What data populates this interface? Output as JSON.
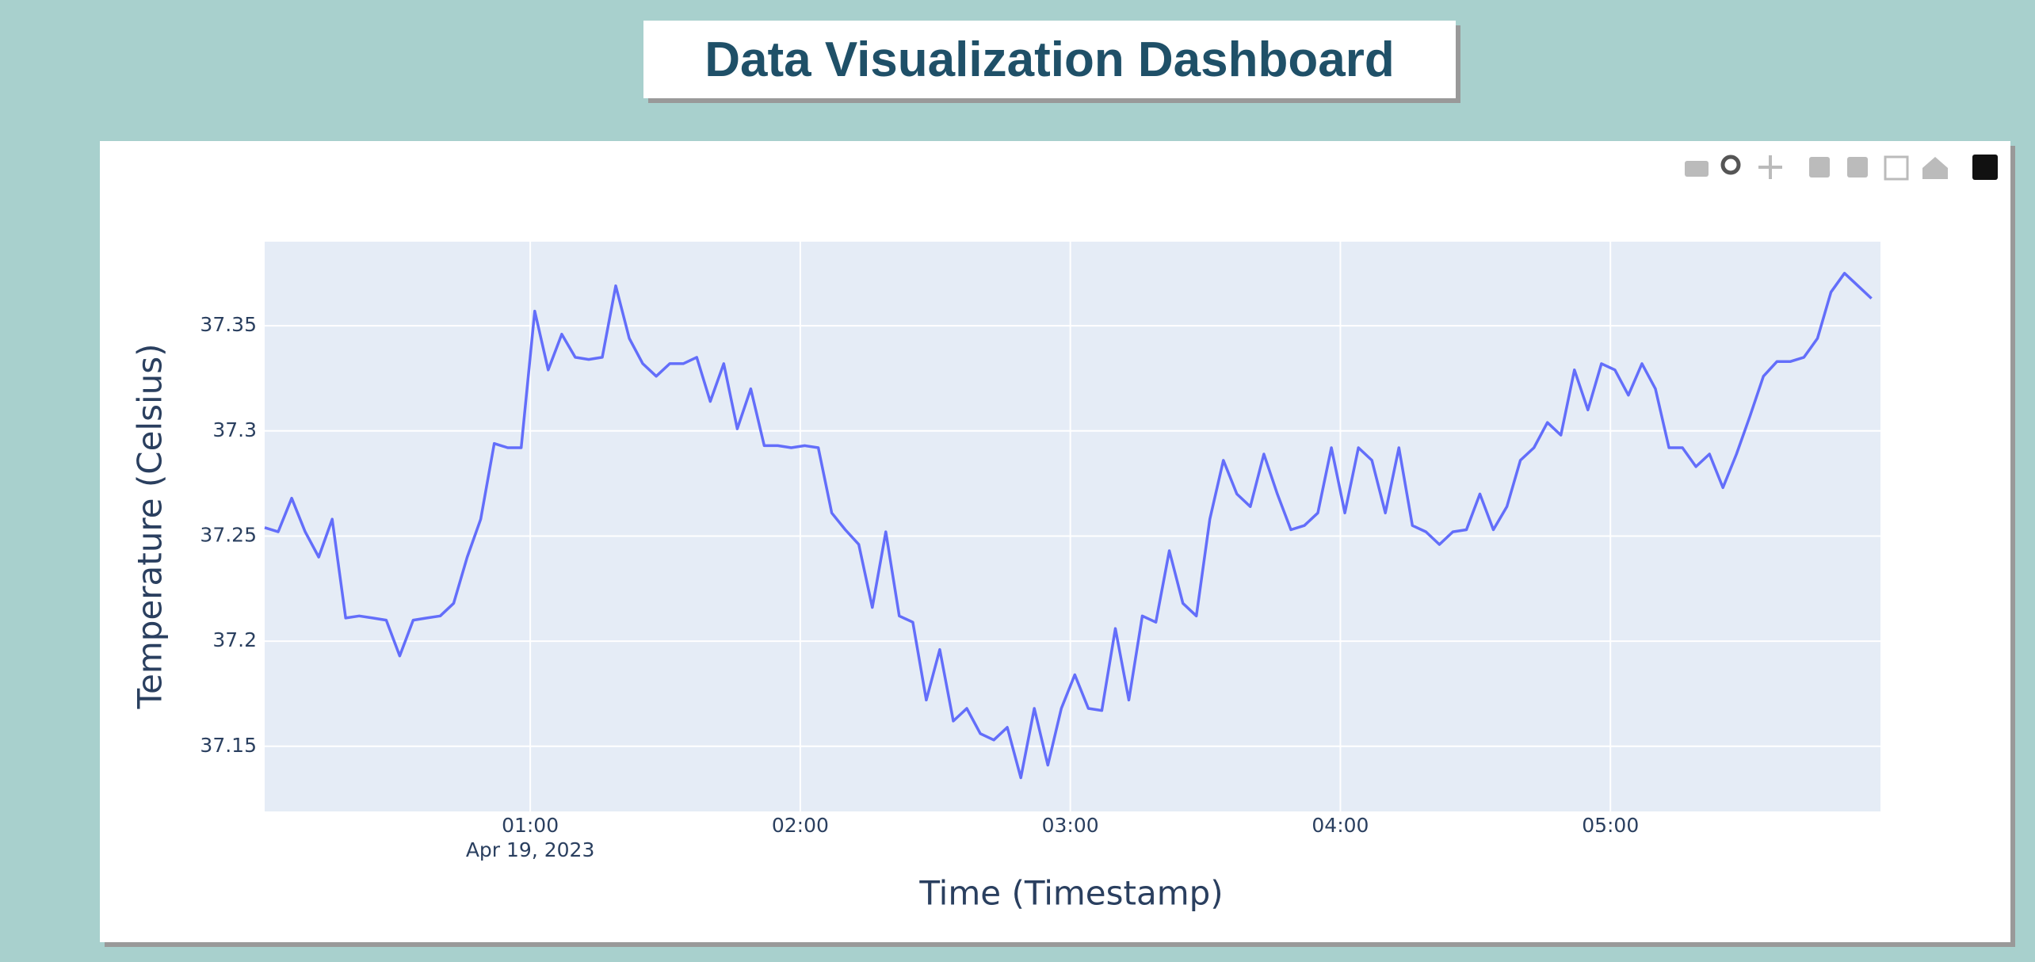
{
  "header": {
    "title": "Data Visualization Dashboard"
  },
  "chart_data": {
    "type": "line",
    "x_title": "Time (Timestamp)",
    "y_title": "Temperature (Celsius)",
    "x_date_label": "Apr 19, 2023",
    "color": "#636efa",
    "grid": true,
    "x": [
      "2023-04-19 00:01",
      "2023-04-19 00:04",
      "2023-04-19 00:07",
      "2023-04-19 00:10",
      "2023-04-19 00:13",
      "2023-04-19 00:16",
      "2023-04-19 00:19",
      "2023-04-19 00:22",
      "2023-04-19 00:25",
      "2023-04-19 00:28",
      "2023-04-19 00:31",
      "2023-04-19 00:34",
      "2023-04-19 00:37",
      "2023-04-19 00:40",
      "2023-04-19 00:43",
      "2023-04-19 00:46",
      "2023-04-19 00:49",
      "2023-04-19 00:52",
      "2023-04-19 00:55",
      "2023-04-19 00:58",
      "2023-04-19 01:01",
      "2023-04-19 01:04",
      "2023-04-19 01:07",
      "2023-04-19 01:10",
      "2023-04-19 01:13",
      "2023-04-19 01:16",
      "2023-04-19 01:19",
      "2023-04-19 01:22",
      "2023-04-19 01:25",
      "2023-04-19 01:28",
      "2023-04-19 01:31",
      "2023-04-19 01:34",
      "2023-04-19 01:37",
      "2023-04-19 01:40",
      "2023-04-19 01:43",
      "2023-04-19 01:46",
      "2023-04-19 01:49",
      "2023-04-19 01:52",
      "2023-04-19 01:55",
      "2023-04-19 01:58",
      "2023-04-19 02:01",
      "2023-04-19 02:04",
      "2023-04-19 02:07",
      "2023-04-19 02:10",
      "2023-04-19 02:13",
      "2023-04-19 02:16",
      "2023-04-19 02:19",
      "2023-04-19 02:22",
      "2023-04-19 02:25",
      "2023-04-19 02:28",
      "2023-04-19 02:31",
      "2023-04-19 02:34",
      "2023-04-19 02:37",
      "2023-04-19 02:40",
      "2023-04-19 02:43",
      "2023-04-19 02:46",
      "2023-04-19 02:49",
      "2023-04-19 02:52",
      "2023-04-19 02:55",
      "2023-04-19 02:58",
      "2023-04-19 03:01",
      "2023-04-19 03:04",
      "2023-04-19 03:07",
      "2023-04-19 03:10",
      "2023-04-19 03:13",
      "2023-04-19 03:16",
      "2023-04-19 03:19",
      "2023-04-19 03:22",
      "2023-04-19 03:25",
      "2023-04-19 03:28",
      "2023-04-19 03:31",
      "2023-04-19 03:34",
      "2023-04-19 03:37",
      "2023-04-19 03:40",
      "2023-04-19 03:43",
      "2023-04-19 03:46",
      "2023-04-19 03:49",
      "2023-04-19 03:52",
      "2023-04-19 03:55",
      "2023-04-19 03:58",
      "2023-04-19 04:01",
      "2023-04-19 04:04",
      "2023-04-19 04:07",
      "2023-04-19 04:10",
      "2023-04-19 04:13",
      "2023-04-19 04:16",
      "2023-04-19 04:19",
      "2023-04-19 04:22",
      "2023-04-19 04:25",
      "2023-04-19 04:28",
      "2023-04-19 04:31",
      "2023-04-19 04:34",
      "2023-04-19 04:37",
      "2023-04-19 04:40",
      "2023-04-19 04:43",
      "2023-04-19 04:46",
      "2023-04-19 04:49",
      "2023-04-19 04:52",
      "2023-04-19 04:55",
      "2023-04-19 04:58",
      "2023-04-19 05:01",
      "2023-04-19 05:04",
      "2023-04-19 05:07",
      "2023-04-19 05:10",
      "2023-04-19 05:13",
      "2023-04-19 05:16",
      "2023-04-19 05:19",
      "2023-04-19 05:22",
      "2023-04-19 05:25",
      "2023-04-19 05:28",
      "2023-04-19 05:31",
      "2023-04-19 05:34",
      "2023-04-19 05:37",
      "2023-04-19 05:40",
      "2023-04-19 05:43",
      "2023-04-19 05:46",
      "2023-04-19 05:49",
      "2023-04-19 05:52",
      "2023-04-19 05:55",
      "2023-04-19 05:58"
    ],
    "values": [
      37.254,
      37.252,
      37.268,
      37.252,
      37.24,
      37.258,
      37.211,
      37.212,
      37.211,
      37.21,
      37.193,
      37.21,
      37.211,
      37.212,
      37.218,
      37.24,
      37.258,
      37.294,
      37.292,
      37.292,
      37.357,
      37.329,
      37.346,
      37.335,
      37.334,
      37.335,
      37.369,
      37.344,
      37.332,
      37.326,
      37.332,
      37.332,
      37.335,
      37.314,
      37.332,
      37.301,
      37.32,
      37.293,
      37.293,
      37.292,
      37.293,
      37.292,
      37.261,
      37.253,
      37.246,
      37.216,
      37.252,
      37.212,
      37.209,
      37.172,
      37.196,
      37.162,
      37.168,
      37.156,
      37.153,
      37.159,
      37.135,
      37.168,
      37.141,
      37.168,
      37.184,
      37.168,
      37.167,
      37.206,
      37.172,
      37.212,
      37.209,
      37.243,
      37.218,
      37.212,
      37.258,
      37.286,
      37.27,
      37.264,
      37.289,
      37.27,
      37.253,
      37.255,
      37.261,
      37.292,
      37.261,
      37.292,
      37.286,
      37.261,
      37.292,
      37.255,
      37.252,
      37.246,
      37.252,
      37.253,
      37.27,
      37.253,
      37.264,
      37.286,
      37.292,
      37.304,
      37.298,
      37.329,
      37.31,
      37.332,
      37.329,
      37.317,
      37.332,
      37.32,
      37.292,
      37.292,
      37.283,
      37.289,
      37.273,
      37.289,
      37.307,
      37.326,
      37.333,
      37.333,
      37.335,
      37.344,
      37.366,
      37.375,
      37.369,
      37.363
    ],
    "xlim": [
      "2023-04-19 00:01",
      "2023-04-19 06:00"
    ],
    "xticks": [
      {
        "value": "2023-04-19 01:00",
        "label": "01:00"
      },
      {
        "value": "2023-04-19 02:00",
        "label": "02:00"
      },
      {
        "value": "2023-04-19 03:00",
        "label": "03:00"
      },
      {
        "value": "2023-04-19 04:00",
        "label": "04:00"
      },
      {
        "value": "2023-04-19 05:00",
        "label": "05:00"
      }
    ],
    "ylim": [
      37.119,
      37.39
    ],
    "yticks": [
      37.15,
      37.2,
      37.25,
      37.3,
      37.35
    ]
  }
}
